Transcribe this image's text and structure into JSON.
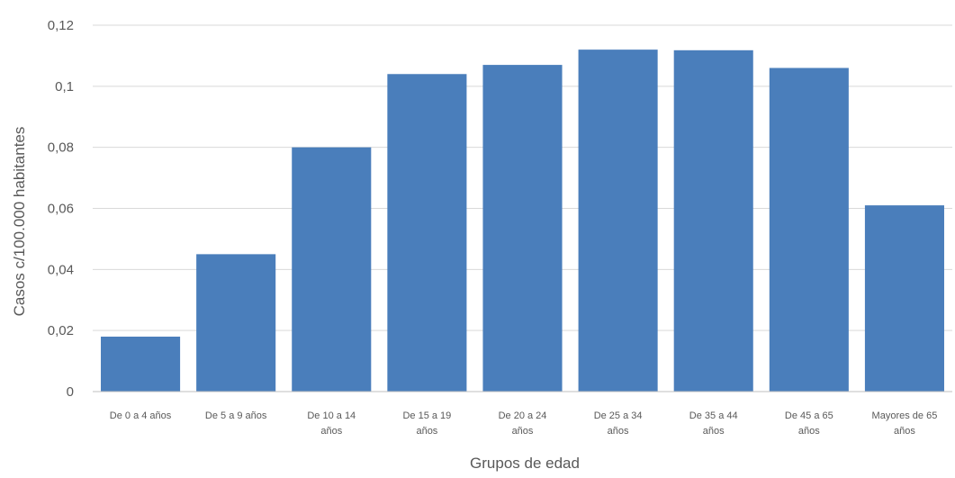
{
  "chart_data": {
    "type": "bar",
    "title": "",
    "xlabel": "Grupos de edad",
    "ylabel": "Casos c/100.000 habitantes",
    "ylim": [
      0,
      0.12
    ],
    "yticks": [
      "0",
      "0,02",
      "0,04",
      "0,06",
      "0,08",
      "0,1",
      "0,12"
    ],
    "grid": true,
    "legend": "none",
    "categories": [
      [
        "De 0 a 4 años"
      ],
      [
        "De 5 a 9 años"
      ],
      [
        "De 10 a 14",
        "años"
      ],
      [
        "De 15 a 19",
        "años"
      ],
      [
        "De 20 a 24",
        "años"
      ],
      [
        "De 25 a 34",
        "años"
      ],
      [
        "De 35 a 44",
        "años"
      ],
      [
        "De 45 a 65",
        "años"
      ],
      [
        "Mayores de 65",
        "años"
      ]
    ],
    "values": [
      0.018,
      0.045,
      0.08,
      0.104,
      0.107,
      0.112,
      0.1118,
      0.106,
      0.061
    ],
    "bar_color": "#4a7ebb",
    "grid_color": "#d9d9d9",
    "axis_color": "#bfbfbf",
    "text_color": "#595959"
  }
}
